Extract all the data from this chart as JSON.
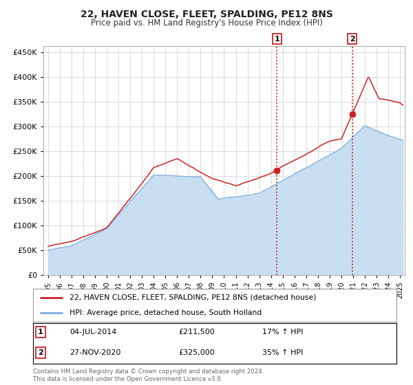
{
  "title": "22, HAVEN CLOSE, FLEET, SPALDING, PE12 8NS",
  "subtitle": "Price paid vs. HM Land Registry's House Price Index (HPI)",
  "legend_line1": "22, HAVEN CLOSE, FLEET, SPALDING, PE12 8NS (detached house)",
  "legend_line2": "HPI: Average price, detached house, South Holland",
  "annotation1_date": "04-JUL-2014",
  "annotation1_price": "£211,500",
  "annotation1_hpi": "17% ↑ HPI",
  "annotation2_date": "27-NOV-2020",
  "annotation2_price": "£325,000",
  "annotation2_hpi": "35% ↑ HPI",
  "footer": "Contains HM Land Registry data © Crown copyright and database right 2024.\nThis data is licensed under the Open Government Licence v3.0.",
  "hpi_color": "#7aaddc",
  "hpi_fill_color": "#c8dff2",
  "price_color": "#cc2222",
  "background_color": "#ffffff",
  "annotation_marker_color": "#cc2222",
  "sale1_x_year": 2014.5,
  "sale1_y": 211500,
  "sale2_x_year": 2020.92,
  "sale2_y": 325000,
  "ylim": [
    0,
    462500
  ],
  "yticks": [
    0,
    50000,
    100000,
    150000,
    200000,
    250000,
    300000,
    350000,
    400000,
    450000
  ],
  "xlim_start": 1994.6,
  "xlim_end": 2025.4
}
